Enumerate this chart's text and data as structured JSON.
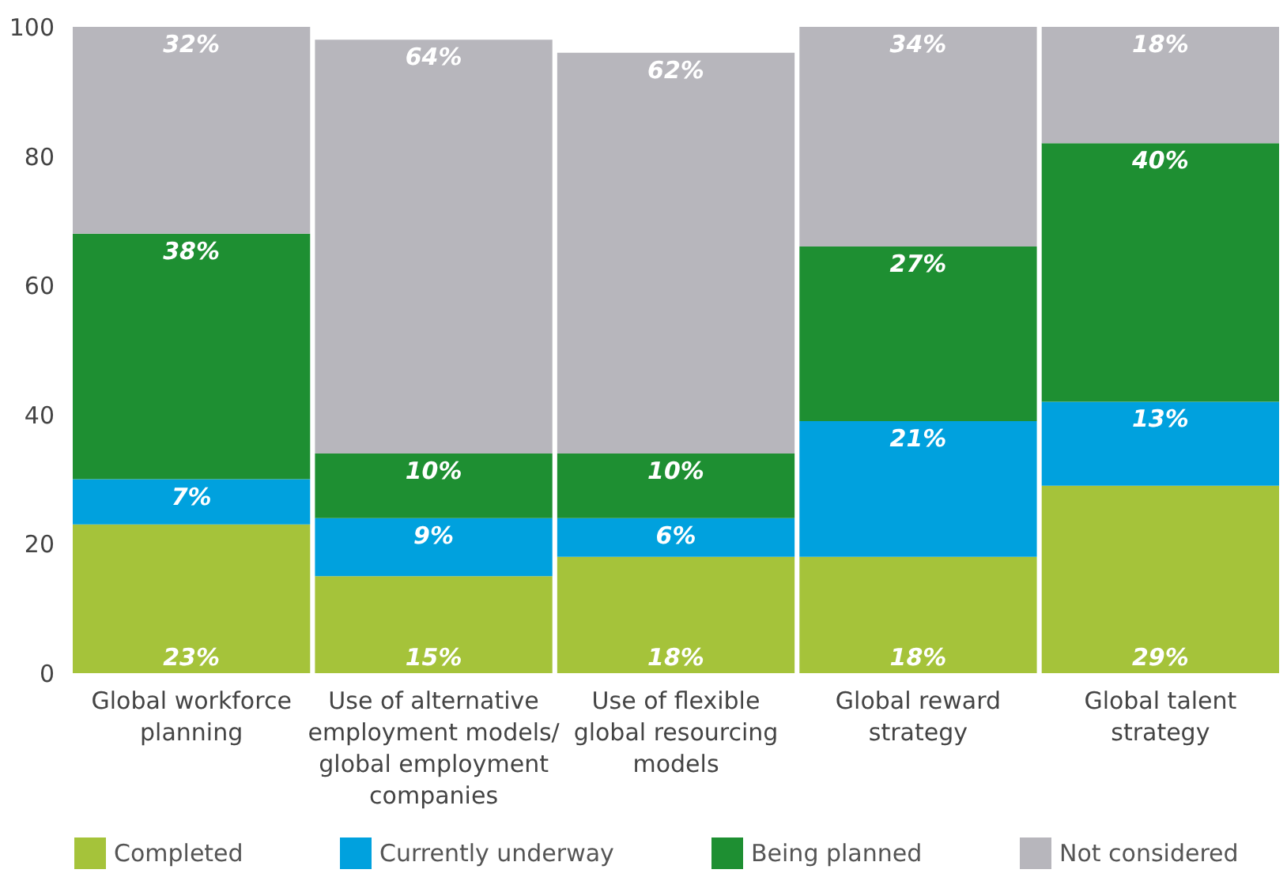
{
  "chart_data": {
    "type": "bar",
    "stacked": true,
    "categories": [
      "Global workforce planning",
      "Use of alternative employment models/ global employment companies",
      "Use of flexible global resourcing models",
      "Global reward strategy",
      "Global talent strategy"
    ],
    "series": [
      {
        "name": "Completed",
        "color": "#a5c33a",
        "values": [
          23,
          15,
          18,
          18,
          29
        ],
        "value_labels": [
          "23%",
          "15%",
          "18%",
          "18%",
          "29%"
        ]
      },
      {
        "name": "Currently underway",
        "color": "#00a1de",
        "values": [
          7,
          9,
          6,
          21,
          13
        ],
        "value_labels": [
          "7%",
          "9%",
          "6%",
          "21%",
          "13%"
        ]
      },
      {
        "name": "Being planned",
        "color": "#1e8f32",
        "values": [
          38,
          10,
          10,
          27,
          40
        ],
        "value_labels": [
          "38%",
          "10%",
          "10%",
          "27%",
          "40%"
        ]
      },
      {
        "name": "Not considered",
        "color": "#b7b6bc",
        "values": [
          32,
          64,
          62,
          34,
          18
        ],
        "value_labels": [
          "32%",
          "64%",
          "62%",
          "34%",
          "18%"
        ]
      }
    ],
    "ylim": [
      0,
      100
    ],
    "yticks": [
      0,
      20,
      40,
      60,
      80,
      100
    ],
    "grid": false,
    "legend": "bottom"
  }
}
